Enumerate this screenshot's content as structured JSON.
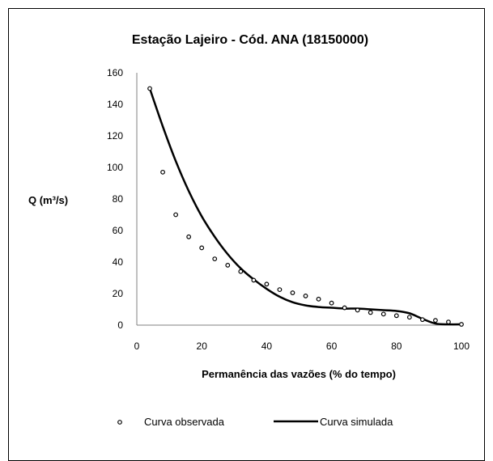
{
  "chart_data": {
    "type": "scatter",
    "title": "Estação Lajeiro - Cód. ANA (18150000)",
    "xlabel": "Permanência das vazões (% do tempo)",
    "ylabel": "Q (m³/s)",
    "xlim": [
      0,
      100
    ],
    "ylim": [
      0,
      160
    ],
    "xticks": [
      0,
      20,
      40,
      60,
      80,
      100
    ],
    "yticks": [
      0,
      20,
      40,
      60,
      80,
      100,
      120,
      140,
      160
    ],
    "grid": false,
    "legend_position": "bottom",
    "series": [
      {
        "name": "Curva observada",
        "mark": "open-circle",
        "color": "#000000",
        "x": [
          4,
          8,
          12,
          16,
          20,
          24,
          28,
          32,
          36,
          40,
          44,
          48,
          52,
          56,
          60,
          64,
          68,
          72,
          76,
          80,
          84,
          88,
          92,
          96,
          100
        ],
        "y": [
          150,
          97,
          70,
          56,
          49,
          42,
          38,
          34,
          28.5,
          26,
          22.5,
          20.5,
          18.5,
          16.5,
          14,
          11,
          9.5,
          8,
          7,
          6,
          5,
          3.5,
          3,
          2,
          0.5
        ]
      },
      {
        "name": "Curva simulada",
        "mark": "line",
        "color": "#000000",
        "x": [
          4,
          8,
          12,
          16,
          20,
          24,
          28,
          32,
          36,
          40,
          44,
          48,
          52,
          56,
          60,
          64,
          68,
          72,
          76,
          80,
          84,
          88,
          92,
          96,
          100
        ],
        "y": [
          150,
          126,
          104,
          85,
          69,
          56,
          45,
          36,
          29,
          23,
          18,
          14.5,
          12.5,
          11.5,
          11,
          10.5,
          10.5,
          10,
          9.5,
          9,
          7.5,
          4,
          1,
          0.5,
          0.5
        ]
      }
    ]
  }
}
